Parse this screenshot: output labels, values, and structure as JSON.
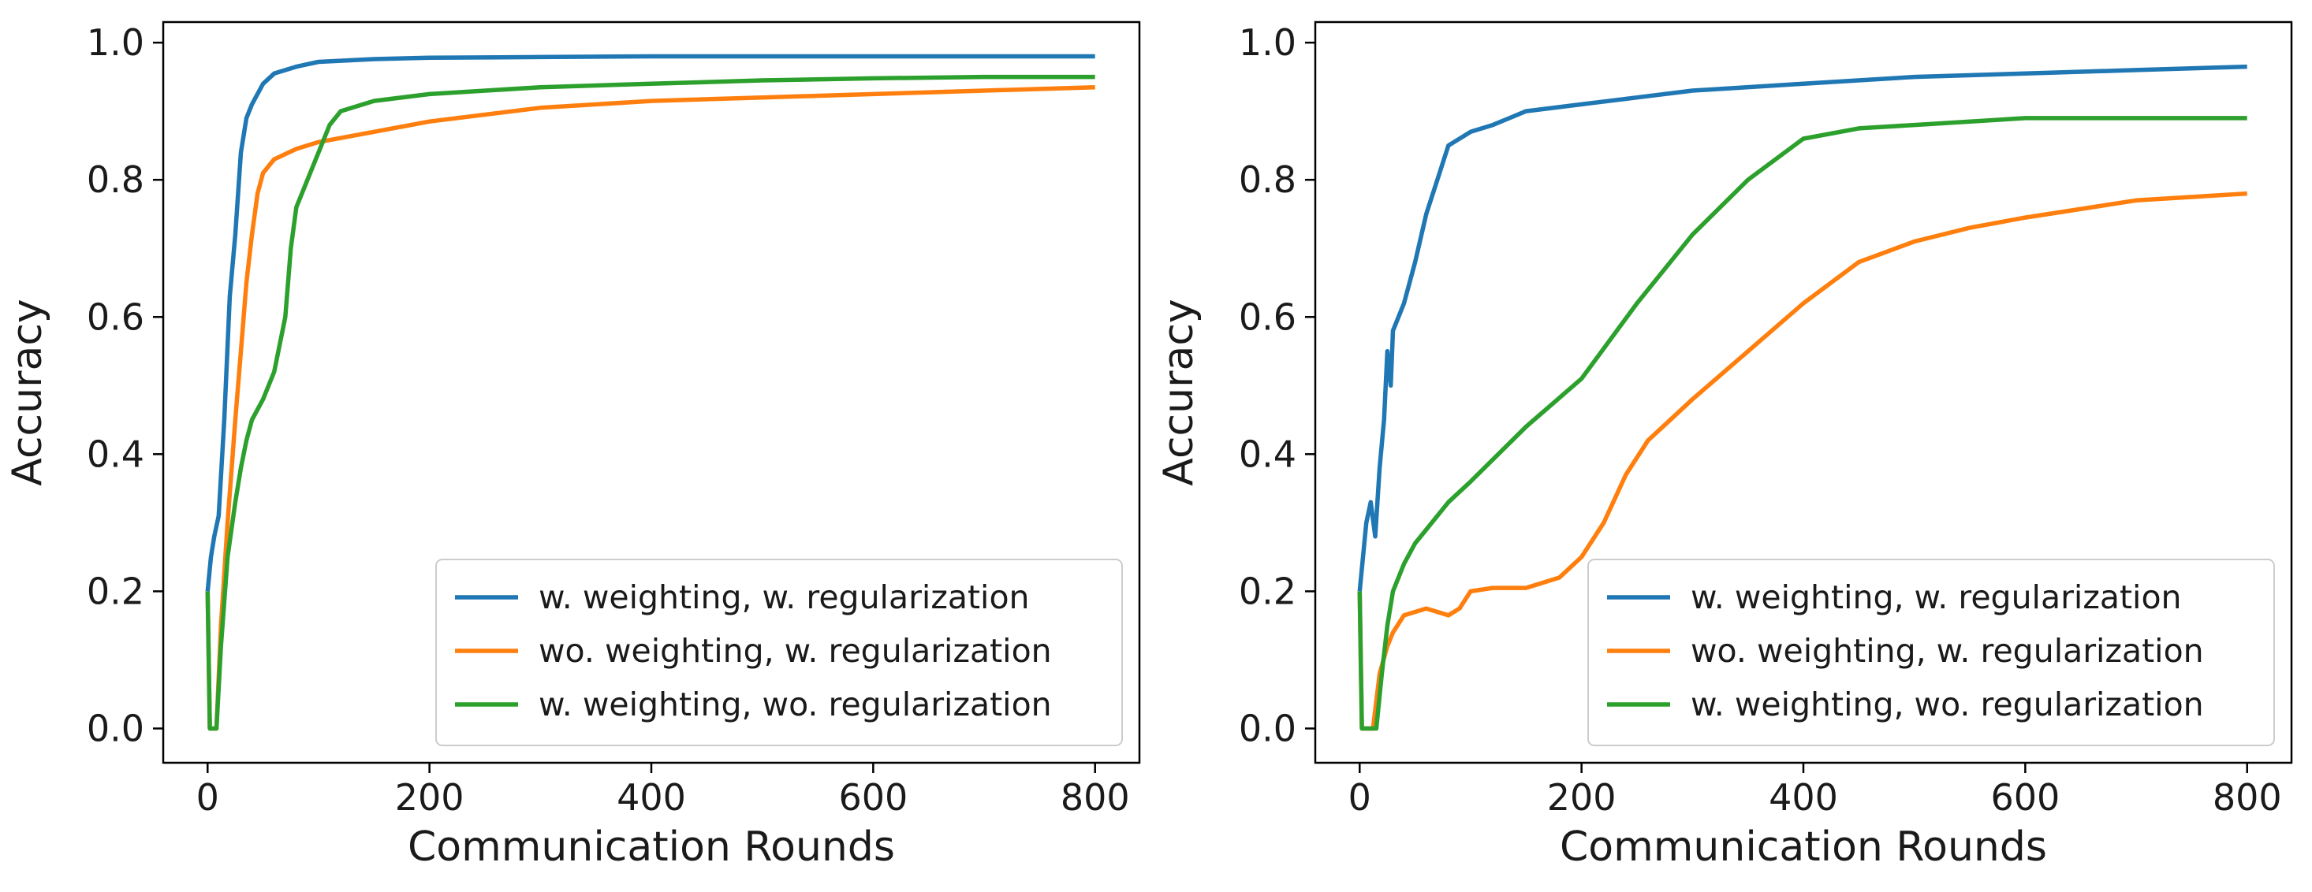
{
  "chart_data": [
    {
      "type": "line",
      "title": "",
      "xlabel": "Communication Rounds",
      "ylabel": "Accuracy",
      "xlim": [
        -40,
        840
      ],
      "ylim": [
        -0.05,
        1.03
      ],
      "xticks": [
        "0",
        "200",
        "400",
        "600",
        "800"
      ],
      "yticks": [
        "0.0",
        "0.2",
        "0.4",
        "0.6",
        "0.8",
        "1.0"
      ],
      "grid": false,
      "legend_position": "lower-right",
      "series": [
        {
          "name": "w. weighting, w. regularization",
          "color": "#1f77b4",
          "x": [
            0,
            3,
            6,
            10,
            15,
            20,
            25,
            30,
            35,
            40,
            50,
            60,
            80,
            100,
            150,
            200,
            300,
            400,
            500,
            600,
            700,
            800
          ],
          "y": [
            0.2,
            0.25,
            0.28,
            0.31,
            0.45,
            0.63,
            0.72,
            0.84,
            0.89,
            0.91,
            0.94,
            0.955,
            0.965,
            0.972,
            0.976,
            0.978,
            0.979,
            0.98,
            0.98,
            0.98,
            0.98,
            0.98
          ]
        },
        {
          "name": "wo. weighting, w. regularization",
          "color": "#ff7f0e",
          "x": [
            0,
            2,
            5,
            8,
            12,
            18,
            25,
            30,
            35,
            40,
            45,
            50,
            60,
            80,
            100,
            150,
            200,
            300,
            400,
            500,
            600,
            700,
            800
          ],
          "y": [
            0.2,
            0.0,
            0.0,
            0.0,
            0.15,
            0.3,
            0.45,
            0.55,
            0.65,
            0.72,
            0.78,
            0.81,
            0.83,
            0.845,
            0.855,
            0.87,
            0.885,
            0.905,
            0.915,
            0.92,
            0.925,
            0.93,
            0.935
          ]
        },
        {
          "name": "w. weighting, wo. regularization",
          "color": "#2ca02c",
          "x": [
            0,
            2,
            5,
            8,
            12,
            18,
            25,
            30,
            35,
            40,
            50,
            60,
            70,
            75,
            80,
            90,
            100,
            110,
            120,
            150,
            200,
            300,
            400,
            500,
            600,
            700,
            800
          ],
          "y": [
            0.2,
            0.0,
            0.0,
            0.0,
            0.12,
            0.25,
            0.33,
            0.38,
            0.42,
            0.45,
            0.48,
            0.52,
            0.6,
            0.7,
            0.76,
            0.8,
            0.84,
            0.88,
            0.9,
            0.915,
            0.925,
            0.935,
            0.94,
            0.945,
            0.948,
            0.95,
            0.95
          ]
        }
      ]
    },
    {
      "type": "line",
      "title": "",
      "xlabel": "Communication Rounds",
      "ylabel": "Accuracy",
      "xlim": [
        -40,
        840
      ],
      "ylim": [
        -0.05,
        1.03
      ],
      "xticks": [
        "0",
        "200",
        "400",
        "600",
        "800"
      ],
      "yticks": [
        "0.0",
        "0.2",
        "0.4",
        "0.6",
        "0.8",
        "1.0"
      ],
      "grid": false,
      "legend_position": "lower-right",
      "series": [
        {
          "name": "w. weighting, w. regularization",
          "color": "#1f77b4",
          "x": [
            0,
            3,
            6,
            10,
            14,
            18,
            22,
            25,
            28,
            30,
            35,
            40,
            50,
            60,
            70,
            80,
            100,
            120,
            150,
            200,
            250,
            300,
            400,
            500,
            600,
            700,
            800
          ],
          "y": [
            0.2,
            0.25,
            0.3,
            0.33,
            0.28,
            0.38,
            0.45,
            0.55,
            0.5,
            0.58,
            0.6,
            0.62,
            0.68,
            0.75,
            0.8,
            0.85,
            0.87,
            0.88,
            0.9,
            0.91,
            0.92,
            0.93,
            0.94,
            0.95,
            0.955,
            0.96,
            0.965
          ]
        },
        {
          "name": "wo. weighting, w. regularization",
          "color": "#ff7f0e",
          "x": [
            0,
            2,
            4,
            8,
            12,
            18,
            25,
            30,
            40,
            60,
            70,
            80,
            90,
            100,
            120,
            150,
            180,
            200,
            220,
            240,
            260,
            280,
            300,
            350,
            400,
            450,
            500,
            550,
            600,
            700,
            800
          ],
          "y": [
            0.2,
            0.0,
            0.0,
            0.0,
            0.0,
            0.08,
            0.12,
            0.14,
            0.165,
            0.175,
            0.17,
            0.165,
            0.175,
            0.2,
            0.205,
            0.205,
            0.22,
            0.25,
            0.3,
            0.37,
            0.42,
            0.45,
            0.48,
            0.55,
            0.62,
            0.68,
            0.71,
            0.73,
            0.745,
            0.77,
            0.78
          ]
        },
        {
          "name": "w. weighting, wo. regularization",
          "color": "#2ca02c",
          "x": [
            0,
            2,
            5,
            10,
            15,
            20,
            25,
            30,
            40,
            50,
            60,
            80,
            100,
            150,
            200,
            250,
            300,
            350,
            400,
            450,
            500,
            600,
            700,
            800
          ],
          "y": [
            0.2,
            0.0,
            0.0,
            0.0,
            0.0,
            0.08,
            0.15,
            0.2,
            0.24,
            0.27,
            0.29,
            0.33,
            0.36,
            0.44,
            0.51,
            0.62,
            0.72,
            0.8,
            0.86,
            0.875,
            0.88,
            0.89,
            0.89,
            0.89
          ]
        }
      ]
    }
  ]
}
